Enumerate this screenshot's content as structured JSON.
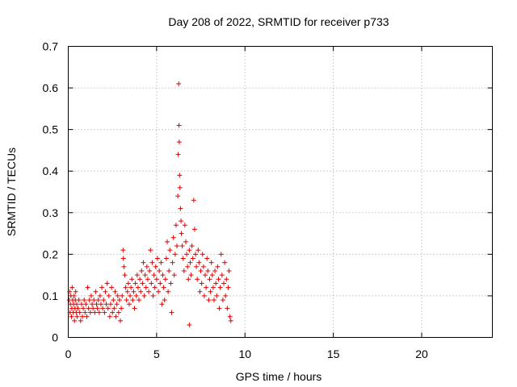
{
  "chart_data": {
    "type": "scatter",
    "title": "Day 208 of 2022, SRMTID for receiver p733",
    "xlabel": "GPS time / hours",
    "ylabel": "SRMTID / TECUs",
    "xlim": [
      0,
      24
    ],
    "ylim": [
      0,
      0.7
    ],
    "xticks": [
      "0",
      "5",
      "10",
      "15",
      "20"
    ],
    "yticks": [
      "0",
      "0.1",
      "0.2",
      "0.3",
      "0.4",
      "0.5",
      "0.6",
      "0.7"
    ],
    "grid": true,
    "marker": "+",
    "color": "#e00000",
    "series": [
      {
        "name": "SRMTID",
        "points": [
          [
            0.05,
            0.09
          ],
          [
            0.08,
            0.11
          ],
          [
            0.1,
            0.06
          ],
          [
            0.12,
            0.08
          ],
          [
            0.15,
            0.1
          ],
          [
            0.18,
            0.05
          ],
          [
            0.2,
            0.07
          ],
          [
            0.22,
            0.12
          ],
          [
            0.25,
            0.09
          ],
          [
            0.28,
            0.06
          ],
          [
            0.3,
            0.08
          ],
          [
            0.33,
            0.1
          ],
          [
            0.35,
            0.04
          ],
          [
            0.38,
            0.07
          ],
          [
            0.4,
            0.09
          ],
          [
            0.42,
            0.11
          ],
          [
            0.45,
            0.06
          ],
          [
            0.48,
            0.08
          ],
          [
            0.5,
            0.05
          ],
          [
            0.55,
            0.07
          ],
          [
            0.6,
            0.09
          ],
          [
            0.65,
            0.06
          ],
          [
            0.7,
            0.04
          ],
          [
            0.75,
            0.08
          ],
          [
            0.8,
            0.05
          ],
          [
            0.85,
            0.07
          ],
          [
            0.9,
            0.09
          ],
          [
            0.95,
            0.06
          ],
          [
            1.0,
            0.08
          ],
          [
            1.05,
            0.05
          ],
          [
            1.1,
            0.12
          ],
          [
            1.15,
            0.07
          ],
          [
            1.2,
            0.09
          ],
          [
            1.25,
            0.06
          ],
          [
            1.3,
            0.1
          ],
          [
            1.35,
            0.08
          ],
          [
            1.4,
            0.07
          ],
          [
            1.45,
            0.09
          ],
          [
            1.5,
            0.06
          ],
          [
            1.55,
            0.11
          ],
          [
            1.6,
            0.08
          ],
          [
            1.65,
            0.07
          ],
          [
            1.7,
            0.09
          ],
          [
            1.75,
            0.06
          ],
          [
            1.8,
            0.1
          ],
          [
            1.85,
            0.08
          ],
          [
            1.9,
            0.12
          ],
          [
            1.95,
            0.07
          ],
          [
            2.0,
            0.09
          ],
          [
            2.05,
            0.06
          ],
          [
            2.1,
            0.11
          ],
          [
            2.15,
            0.08
          ],
          [
            2.2,
            0.13
          ],
          [
            2.25,
            0.07
          ],
          [
            2.3,
            0.1
          ],
          [
            2.35,
            0.05
          ],
          [
            2.4,
            0.08
          ],
          [
            2.45,
            0.12
          ],
          [
            2.5,
            0.06
          ],
          [
            2.55,
            0.09
          ],
          [
            2.6,
            0.07
          ],
          [
            2.65,
            0.11
          ],
          [
            2.7,
            0.05
          ],
          [
            2.75,
            0.08
          ],
          [
            2.8,
            0.1
          ],
          [
            2.85,
            0.06
          ],
          [
            2.9,
            0.09
          ],
          [
            2.95,
            0.04
          ],
          [
            3.0,
            0.07
          ],
          [
            3.05,
            0.1
          ],
          [
            3.1,
            0.21
          ],
          [
            3.12,
            0.19
          ],
          [
            3.15,
            0.17
          ],
          [
            3.2,
            0.15
          ],
          [
            3.25,
            0.12
          ],
          [
            3.3,
            0.09
          ],
          [
            3.35,
            0.11
          ],
          [
            3.4,
            0.13
          ],
          [
            3.45,
            0.08
          ],
          [
            3.5,
            0.1
          ],
          [
            3.55,
            0.12
          ],
          [
            3.6,
            0.14
          ],
          [
            3.65,
            0.09
          ],
          [
            3.7,
            0.11
          ],
          [
            3.75,
            0.07
          ],
          [
            3.8,
            0.13
          ],
          [
            3.85,
            0.1
          ],
          [
            3.9,
            0.15
          ],
          [
            3.95,
            0.12
          ],
          [
            4.0,
            0.09
          ],
          [
            4.05,
            0.14
          ],
          [
            4.1,
            0.11
          ],
          [
            4.15,
            0.16
          ],
          [
            4.2,
            0.13
          ],
          [
            4.25,
            0.18
          ],
          [
            4.3,
            0.1
          ],
          [
            4.35,
            0.15
          ],
          [
            4.4,
            0.12
          ],
          [
            4.45,
            0.17
          ],
          [
            4.5,
            0.14
          ],
          [
            4.55,
            0.11
          ],
          [
            4.6,
            0.16
          ],
          [
            4.65,
            0.21
          ],
          [
            4.7,
            0.13
          ],
          [
            4.75,
            0.18
          ],
          [
            4.8,
            0.1
          ],
          [
            4.85,
            0.15
          ],
          [
            4.9,
            0.12
          ],
          [
            4.95,
            0.17
          ],
          [
            5.0,
            0.14
          ],
          [
            5.05,
            0.19
          ],
          [
            5.1,
            0.11
          ],
          [
            5.15,
            0.16
          ],
          [
            5.2,
            0.13
          ],
          [
            5.25,
            0.18
          ],
          [
            5.3,
            0.08
          ],
          [
            5.35,
            0.15
          ],
          [
            5.4,
            0.12
          ],
          [
            5.45,
            0.09
          ],
          [
            5.5,
            0.14
          ],
          [
            5.55,
            0.19
          ],
          [
            5.6,
            0.23
          ],
          [
            5.65,
            0.11
          ],
          [
            5.7,
            0.16
          ],
          [
            5.75,
            0.21
          ],
          [
            5.8,
            0.13
          ],
          [
            5.85,
            0.06
          ],
          [
            5.9,
            0.18
          ],
          [
            5.95,
            0.24
          ],
          [
            6.0,
            0.15
          ],
          [
            6.05,
            0.2
          ],
          [
            6.1,
            0.27
          ],
          [
            6.15,
            0.22
          ],
          [
            6.2,
            0.34
          ],
          [
            6.22,
            0.44
          ],
          [
            6.25,
            0.61
          ],
          [
            6.27,
            0.51
          ],
          [
            6.28,
            0.47
          ],
          [
            6.3,
            0.39
          ],
          [
            6.32,
            0.36
          ],
          [
            6.35,
            0.31
          ],
          [
            6.38,
            0.28
          ],
          [
            6.4,
            0.25
          ],
          [
            6.45,
            0.22
          ],
          [
            6.5,
            0.19
          ],
          [
            6.55,
            0.16
          ],
          [
            6.6,
            0.27
          ],
          [
            6.65,
            0.23
          ],
          [
            6.7,
            0.2
          ],
          [
            6.75,
            0.17
          ],
          [
            6.8,
            0.14
          ],
          [
            6.85,
            0.21
          ],
          [
            6.9,
            0.18
          ],
          [
            6.95,
            0.15
          ],
          [
            7.0,
            0.22
          ],
          [
            7.05,
            0.19
          ],
          [
            7.1,
            0.33
          ],
          [
            7.15,
            0.26
          ],
          [
            7.2,
            0.2
          ],
          [
            7.25,
            0.17
          ],
          [
            7.3,
            0.14
          ],
          [
            7.35,
            0.21
          ],
          [
            7.4,
            0.18
          ],
          [
            7.45,
            0.11
          ],
          [
            7.5,
            0.16
          ],
          [
            7.55,
            0.13
          ],
          [
            7.6,
            0.2
          ],
          [
            7.65,
            0.17
          ],
          [
            7.7,
            0.1
          ],
          [
            7.75,
            0.15
          ],
          [
            7.8,
            0.12
          ],
          [
            7.85,
            0.19
          ],
          [
            7.9,
            0.16
          ],
          [
            7.95,
            0.09
          ],
          [
            8.0,
            0.14
          ],
          [
            8.05,
            0.11
          ],
          [
            8.1,
            0.18
          ],
          [
            8.15,
            0.15
          ],
          [
            8.2,
            0.12
          ],
          [
            8.25,
            0.09
          ],
          [
            8.3,
            0.16
          ],
          [
            8.35,
            0.13
          ],
          [
            8.4,
            0.1
          ],
          [
            8.45,
            0.17
          ],
          [
            8.5,
            0.14
          ],
          [
            8.55,
            0.07
          ],
          [
            8.6,
            0.12
          ],
          [
            8.65,
            0.2
          ],
          [
            8.7,
            0.15
          ],
          [
            8.75,
            0.09
          ],
          [
            8.8,
            0.13
          ],
          [
            8.85,
            0.18
          ],
          [
            8.9,
            0.1
          ],
          [
            8.95,
            0.14
          ],
          [
            9.0,
            0.07
          ],
          [
            9.05,
            0.12
          ],
          [
            9.1,
            0.16
          ],
          [
            9.15,
            0.05
          ],
          [
            9.2,
            0.04
          ],
          [
            6.85,
            0.03
          ]
        ]
      }
    ]
  }
}
